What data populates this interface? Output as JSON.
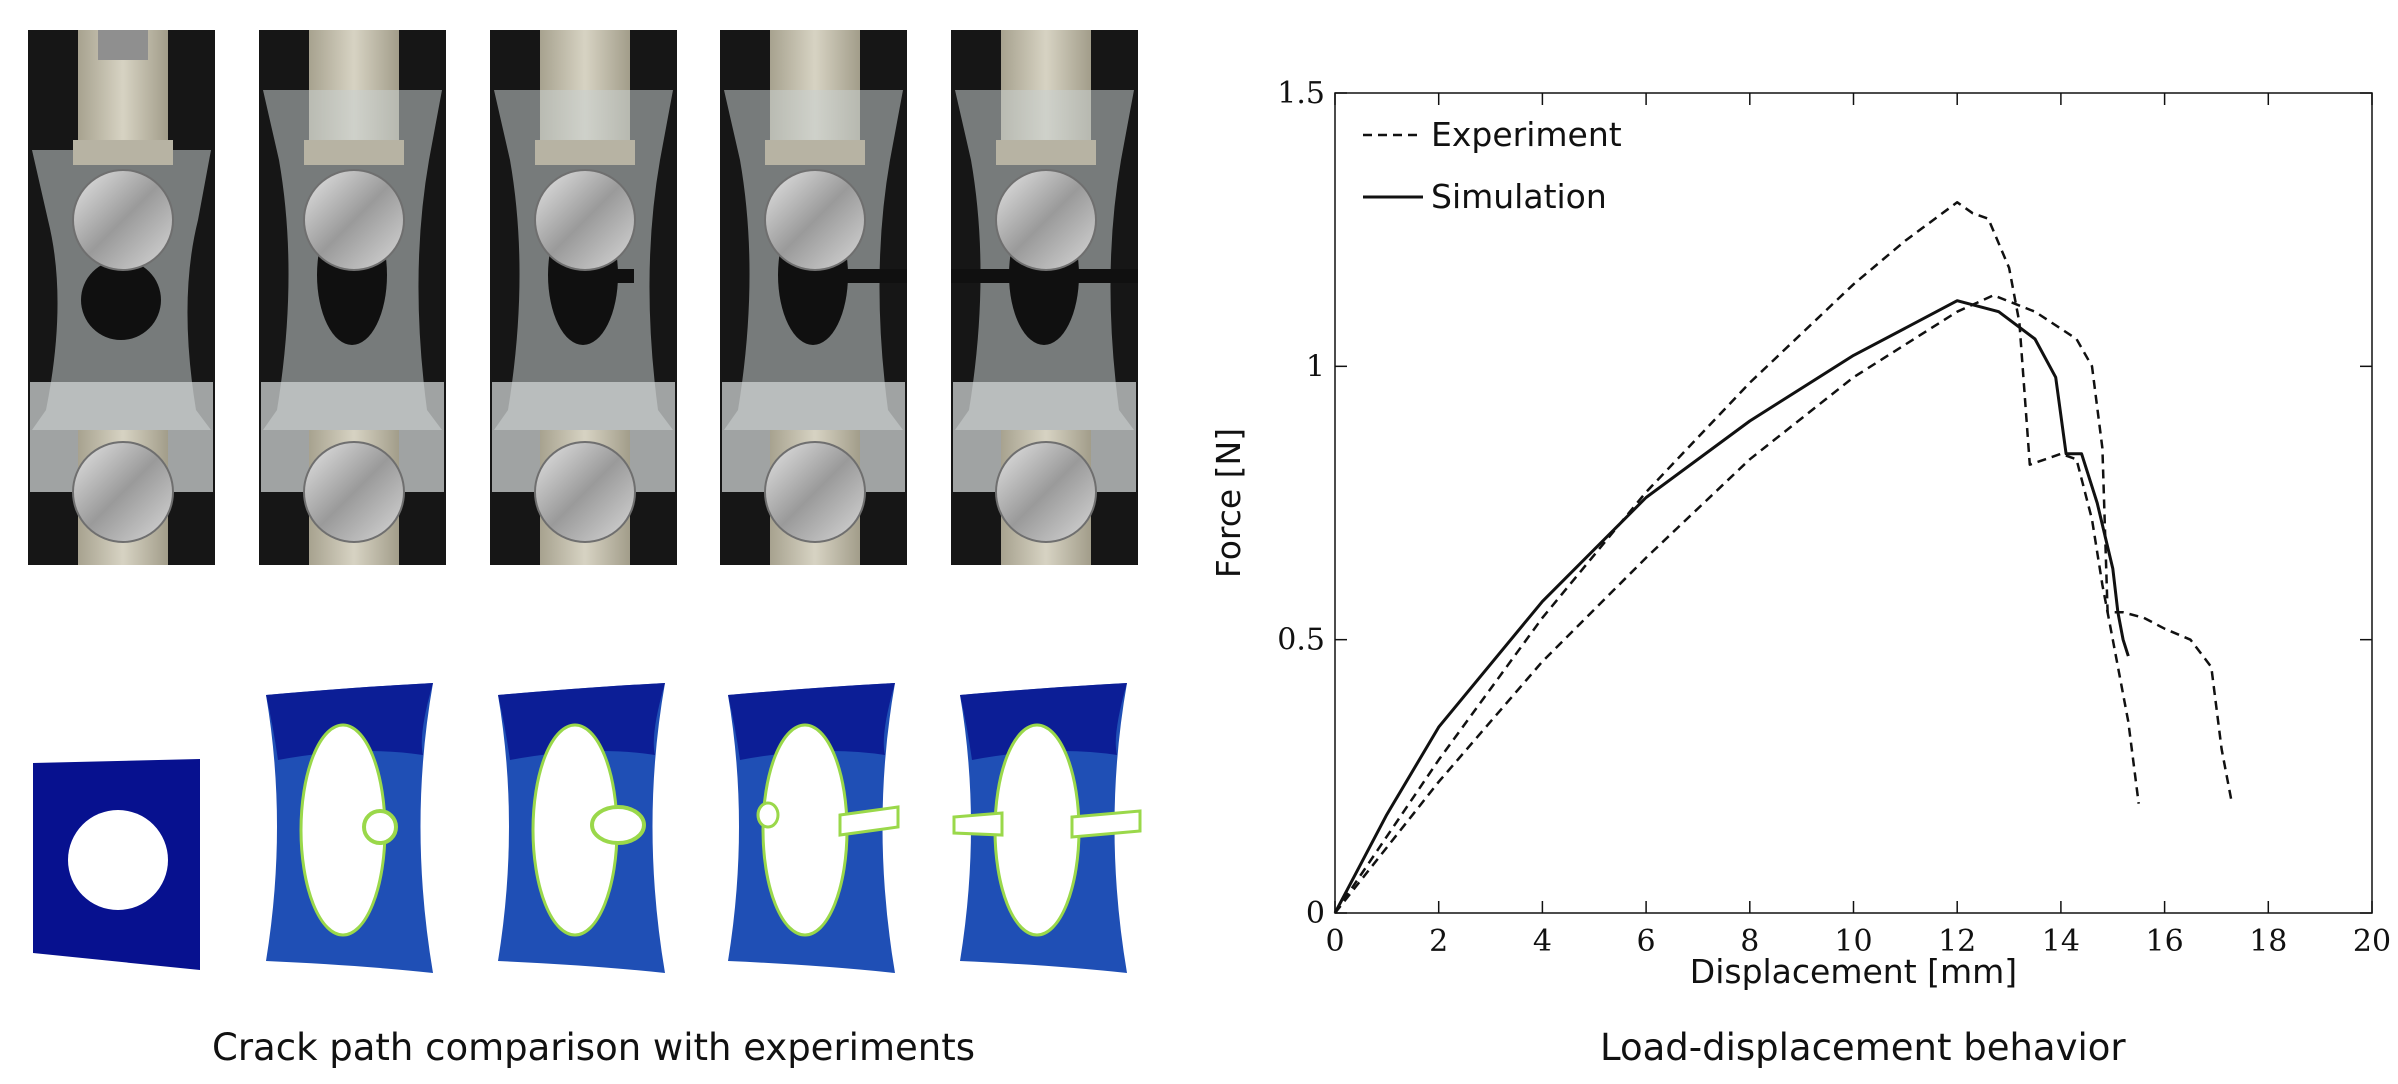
{
  "captions": {
    "left": "Crack path comparison with experiments",
    "right": "Load-displacement behavior"
  },
  "photos": [
    {
      "stage": 1,
      "hole": "circle",
      "crack": "none"
    },
    {
      "stage": 2,
      "hole": "ellipse",
      "crack": "initiation"
    },
    {
      "stage": 3,
      "hole": "ellipse",
      "crack": "growing"
    },
    {
      "stage": 4,
      "hole": "ellipse",
      "crack": "propagated"
    },
    {
      "stage": 5,
      "hole": "ellipse",
      "crack": "fractured"
    }
  ],
  "simulations": [
    {
      "stage": 1,
      "hole": "circle",
      "crack": "none"
    },
    {
      "stage": 2,
      "hole": "ellipse",
      "crack": "initiation"
    },
    {
      "stage": 3,
      "hole": "ellipse",
      "crack": "growing"
    },
    {
      "stage": 4,
      "hole": "ellipse",
      "crack": "propagated"
    },
    {
      "stage": 5,
      "hole": "ellipse",
      "crack": "fractured"
    }
  ],
  "colors": {
    "sim_blue_dark": "#07118f",
    "sim_blue": "#1f4fb5",
    "crack_green": "#9ad84a",
    "line": "#111111"
  },
  "chart_data": {
    "type": "line",
    "title": "",
    "xlabel": "Displacement [mm]",
    "ylabel": "Force [N]",
    "xlim": [
      0,
      20
    ],
    "ylim": [
      0,
      1.5
    ],
    "xticks": [
      0,
      2,
      4,
      6,
      8,
      10,
      12,
      14,
      16,
      18,
      20
    ],
    "yticks": [
      0,
      0.5,
      1,
      1.5
    ],
    "ytick_labels": [
      "0",
      "0.5",
      "1",
      "1.5"
    ],
    "legend": {
      "position": "top-left",
      "entries": [
        {
          "label": "Experiment",
          "style": "dashed"
        },
        {
          "label": "Simulation",
          "style": "solid"
        }
      ]
    },
    "series": [
      {
        "name": "Experiment",
        "style": "dashed",
        "x": [
          0,
          2,
          4,
          6,
          8,
          10,
          11,
          12,
          12.3,
          12.6,
          13,
          13.2,
          13.3,
          13.4,
          14,
          14.3,
          14.6,
          14.8,
          15.0,
          15.3,
          15.5
        ],
        "y": [
          0,
          0.28,
          0.54,
          0.77,
          0.97,
          1.15,
          1.23,
          1.3,
          1.28,
          1.27,
          1.18,
          1.08,
          0.95,
          0.82,
          0.84,
          0.83,
          0.72,
          0.6,
          0.5,
          0.35,
          0.2
        ]
      },
      {
        "name": "Experiment",
        "style": "dashed",
        "x": [
          0,
          2,
          4,
          6,
          8,
          10,
          12,
          12.7,
          13.5,
          14.3,
          14.6,
          14.8,
          14.9,
          15.2,
          15.6,
          16,
          16.5,
          16.9,
          17.1,
          17.3
        ],
        "y": [
          0,
          0.24,
          0.46,
          0.65,
          0.83,
          0.98,
          1.1,
          1.13,
          1.1,
          1.05,
          1.0,
          0.85,
          0.55,
          0.55,
          0.54,
          0.52,
          0.5,
          0.45,
          0.3,
          0.2
        ]
      },
      {
        "name": "Simulation",
        "style": "solid",
        "x": [
          0,
          1,
          2,
          4,
          6,
          8,
          10,
          11,
          12,
          12.8,
          13.5,
          13.9,
          14.1,
          14.2,
          14.4,
          14.7,
          15.0,
          15.1,
          15.2,
          15.3
        ],
        "y": [
          0,
          0.18,
          0.34,
          0.57,
          0.76,
          0.9,
          1.02,
          1.07,
          1.12,
          1.1,
          1.05,
          0.98,
          0.84,
          0.84,
          0.84,
          0.75,
          0.63,
          0.55,
          0.5,
          0.47
        ]
      }
    ]
  }
}
